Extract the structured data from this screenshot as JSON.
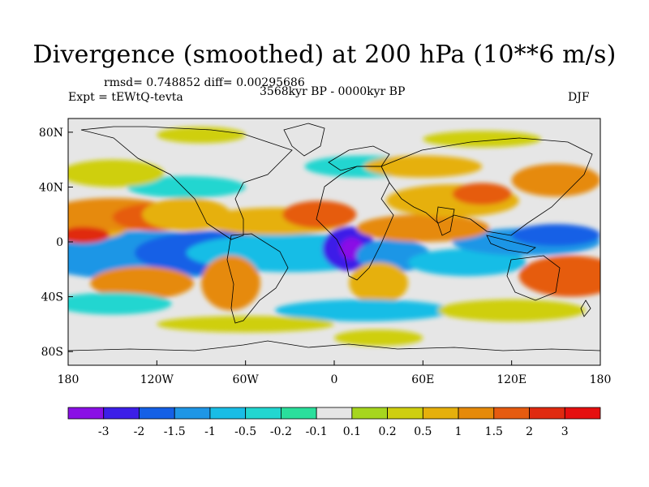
{
  "title": "Divergence (smoothed) at 200 hPa (10**6 m/s)",
  "stats": "rmsd= 0.748852 diff= 0.00295686",
  "experiment": "Expt = tEWtQ-tevta",
  "period": "3568kyr BP - 0000kyr BP",
  "season": "DJF",
  "x_ticks": [
    "180",
    "120W",
    "60W",
    "0",
    "60E",
    "120E",
    "180"
  ],
  "y_ticks": [
    "80N",
    "40N",
    "0",
    "40S",
    "80S"
  ],
  "colorbar": {
    "labels": [
      "-3",
      "-2",
      "-1.5",
      "-1",
      "-0.5",
      "-0.2",
      "-0.1",
      "0.1",
      "0.2",
      "0.5",
      "1",
      "1.5",
      "2",
      "3"
    ],
    "colors": [
      "#8a0fe6",
      "#3c1fe8",
      "#1560e6",
      "#1f96e6",
      "#19bde6",
      "#22d6d0",
      "#2adf9c",
      "#e6e6e6",
      "#a6d61f",
      "#cfcf10",
      "#e6b00c",
      "#e68a0a",
      "#e65b10",
      "#e02a10",
      "#e60f0f"
    ]
  },
  "map_data": {
    "background": "#e6e6e6",
    "blobs": [
      {
        "lon": -160,
        "lat": -10,
        "rx": 28,
        "ry": 11,
        "c": 0
      },
      {
        "lon": -165,
        "lat": -8,
        "rx": 40,
        "ry": 16,
        "c": 1
      },
      {
        "lon": -130,
        "lat": -10,
        "rx": 75,
        "ry": 18,
        "c": 3
      },
      {
        "lon": -80,
        "lat": -8,
        "rx": 55,
        "ry": 16,
        "c": 2
      },
      {
        "lon": -60,
        "lat": -12,
        "rx": 30,
        "ry": 10,
        "c": 1
      },
      {
        "lon": -30,
        "lat": -8,
        "rx": 70,
        "ry": 14,
        "c": 4
      },
      {
        "lon": 10,
        "lat": -5,
        "rx": 18,
        "ry": 16,
        "c": 1
      },
      {
        "lon": 12,
        "lat": -5,
        "rx": 8,
        "ry": 8,
        "c": 0
      },
      {
        "lon": 40,
        "lat": -10,
        "rx": 25,
        "ry": 12,
        "c": 3
      },
      {
        "lon": 90,
        "lat": -15,
        "rx": 40,
        "ry": 10,
        "c": 4
      },
      {
        "lon": 130,
        "lat": 0,
        "rx": 50,
        "ry": 10,
        "c": 3
      },
      {
        "lon": 150,
        "lat": 5,
        "rx": 30,
        "ry": 8,
        "c": 2
      },
      {
        "lon": -180,
        "lat": 10,
        "rx": 40,
        "ry": 10,
        "c": 10
      },
      {
        "lon": -150,
        "lat": 20,
        "rx": 45,
        "ry": 12,
        "c": 11
      },
      {
        "lon": -120,
        "lat": 18,
        "rx": 30,
        "ry": 10,
        "c": 12
      },
      {
        "lon": -170,
        "lat": 5,
        "rx": 18,
        "ry": 6,
        "c": 13
      },
      {
        "lon": -100,
        "lat": 20,
        "rx": 30,
        "ry": 12,
        "c": 10
      },
      {
        "lon": -40,
        "lat": 15,
        "rx": 50,
        "ry": 10,
        "c": 10
      },
      {
        "lon": -10,
        "lat": 20,
        "rx": 25,
        "ry": 10,
        "c": 12
      },
      {
        "lon": 60,
        "lat": 10,
        "rx": 45,
        "ry": 10,
        "c": 11
      },
      {
        "lon": 80,
        "lat": 30,
        "rx": 45,
        "ry": 12,
        "c": 10
      },
      {
        "lon": 100,
        "lat": 35,
        "rx": 20,
        "ry": 8,
        "c": 12
      },
      {
        "lon": 160,
        "lat": -25,
        "rx": 35,
        "ry": 15,
        "c": 12
      },
      {
        "lon": -130,
        "lat": -30,
        "rx": 35,
        "ry": 12,
        "c": 11
      },
      {
        "lon": -70,
        "lat": -30,
        "rx": 20,
        "ry": 20,
        "c": 11
      },
      {
        "lon": 30,
        "lat": -30,
        "rx": 20,
        "ry": 15,
        "c": 10
      },
      {
        "lon": -100,
        "lat": 40,
        "rx": 40,
        "ry": 8,
        "c": 5
      },
      {
        "lon": 20,
        "lat": 55,
        "rx": 40,
        "ry": 8,
        "c": 5
      },
      {
        "lon": -150,
        "lat": 50,
        "rx": 35,
        "ry": 10,
        "c": 9
      },
      {
        "lon": 60,
        "lat": 55,
        "rx": 40,
        "ry": 8,
        "c": 10
      },
      {
        "lon": 150,
        "lat": 45,
        "rx": 30,
        "ry": 12,
        "c": 11
      },
      {
        "lon": -150,
        "lat": -45,
        "rx": 40,
        "ry": 8,
        "c": 5
      },
      {
        "lon": 20,
        "lat": -50,
        "rx": 60,
        "ry": 8,
        "c": 4
      },
      {
        "lon": -60,
        "lat": -60,
        "rx": 60,
        "ry": 6,
        "c": 9
      },
      {
        "lon": 120,
        "lat": -50,
        "rx": 50,
        "ry": 8,
        "c": 9
      },
      {
        "lon": 30,
        "lat": -70,
        "rx": 30,
        "ry": 6,
        "c": 9
      },
      {
        "lon": -90,
        "lat": 78,
        "rx": 30,
        "ry": 6,
        "c": 9
      },
      {
        "lon": 100,
        "lat": 75,
        "rx": 40,
        "ry": 6,
        "c": 9
      }
    ]
  }
}
